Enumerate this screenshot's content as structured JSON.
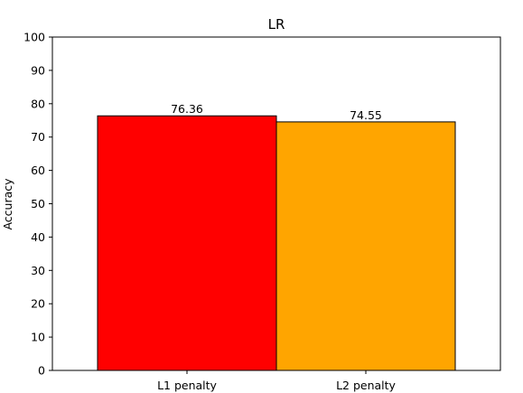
{
  "chart_data": {
    "type": "bar",
    "title": "LR",
    "xlabel": "",
    "ylabel": "Accuracy",
    "categories": [
      "L1 penalty",
      "L2 penalty"
    ],
    "values": [
      76.36,
      74.55
    ],
    "value_labels": [
      "76.36",
      "74.55"
    ],
    "colors": [
      "#ff0000",
      "#ffa500"
    ],
    "ylim": [
      0,
      100
    ],
    "yticks": [
      0,
      10,
      20,
      30,
      40,
      50,
      60,
      70,
      80,
      90,
      100
    ],
    "grid": false,
    "legend": "none"
  }
}
